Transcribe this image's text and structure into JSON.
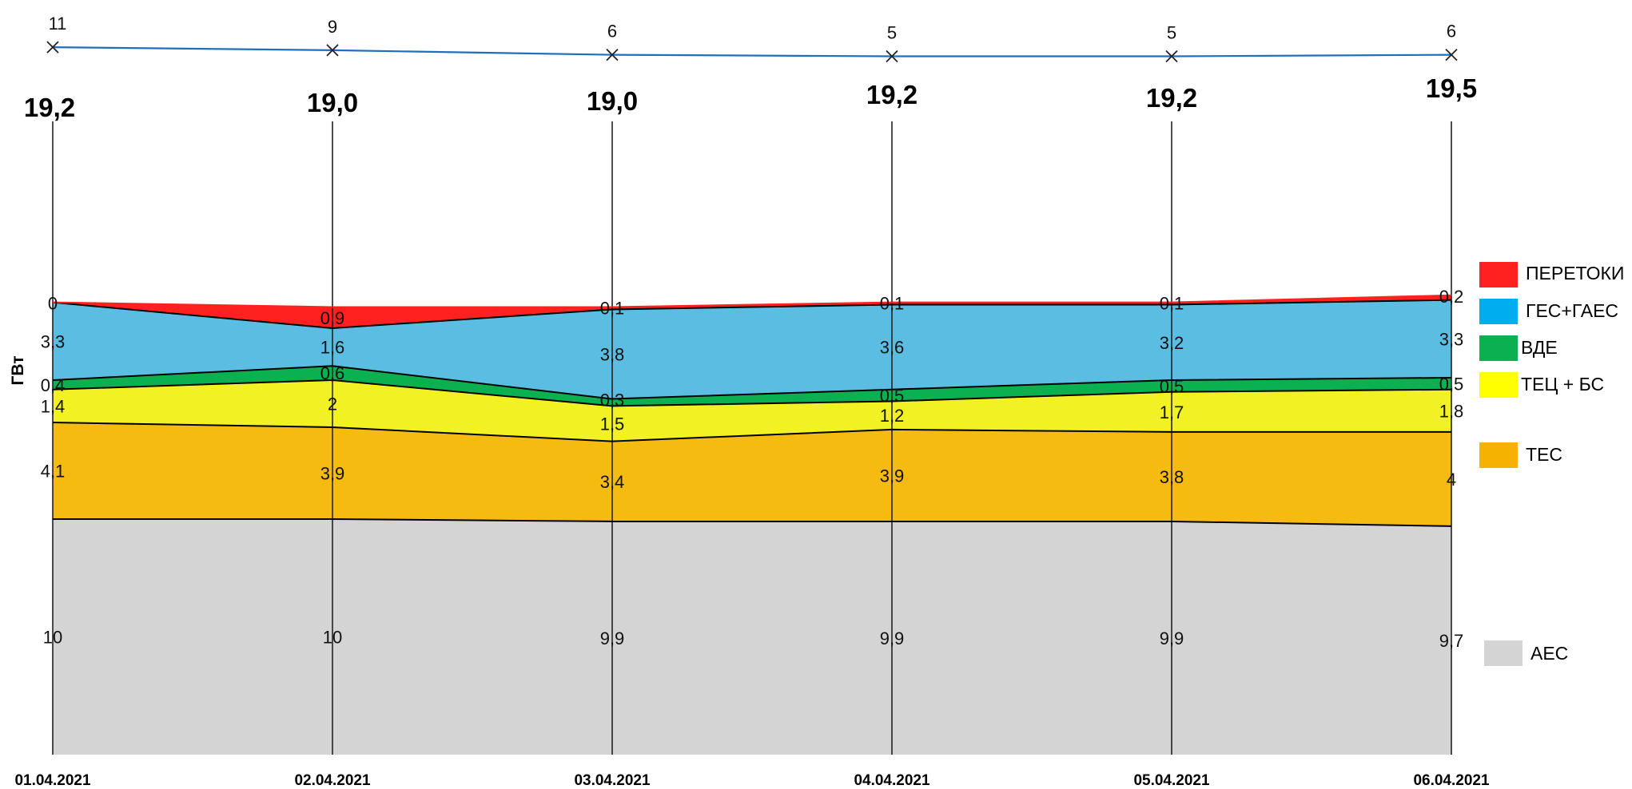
{
  "chart_data": {
    "type": "area",
    "stacked": true,
    "ylabel": "ГВт",
    "categories": [
      "01.04.2021",
      "02.04.2021",
      "03.04.2021",
      "04.04.2021",
      "05.04.2021",
      "06.04.2021"
    ],
    "series": [
      {
        "name": "АЕС",
        "color": "#d4d4d4",
        "values": [
          10,
          10,
          9.9,
          9.9,
          9.9,
          9.7
        ],
        "labels": [
          "10",
          "10",
          "9,9",
          "9,9",
          "9,9",
          "9,7"
        ]
      },
      {
        "name": "ТЕС",
        "color": "#f5bb10",
        "values": [
          4.1,
          3.9,
          3.4,
          3.9,
          3.8,
          4
        ],
        "labels": [
          "4,1",
          "3,9",
          "3,4",
          "3,9",
          "3,8",
          "4"
        ]
      },
      {
        "name": "ТЕЦ + БС",
        "color": "#f1f123",
        "values": [
          1.4,
          2,
          1.5,
          1.2,
          1.7,
          1.8
        ],
        "labels": [
          "1,4",
          "2",
          "1,5",
          "1,2",
          "1,7",
          "1,8"
        ]
      },
      {
        "name": "ВДЕ",
        "color": "#0bb050",
        "values": [
          0.4,
          0.6,
          0.3,
          0.5,
          0.5,
          0.5
        ],
        "labels": [
          "0,4",
          "0,6",
          "0,3",
          "0,5",
          "0,5",
          "0,5"
        ]
      },
      {
        "name": "ГЕС+ГАЕС",
        "color": "#5bbde2",
        "values": [
          3.3,
          1.6,
          3.8,
          3.6,
          3.2,
          3.3
        ],
        "labels": [
          "3,3",
          "1,6",
          "3,8",
          "3,6",
          "3,2",
          "3,3"
        ]
      },
      {
        "name": "ПЕРЕТОКИ",
        "color": "#ff2020",
        "values": [
          0,
          0.9,
          0.1,
          0.1,
          0.1,
          0.2
        ],
        "labels": [
          "0",
          "0,9",
          "0,1",
          "0,1",
          "0,1",
          "0,2"
        ]
      }
    ],
    "totals": [
      "19,2",
      "19,0",
      "19,0",
      "19,2",
      "19,2",
      "19,5"
    ],
    "top_line": {
      "color": "#1f6fbf",
      "values": [
        11,
        9,
        6,
        5,
        5,
        6
      ],
      "labels": [
        "11",
        "9",
        "6",
        "5",
        "5",
        "6"
      ]
    },
    "legend_placement": "right",
    "legend_order": [
      "ПЕРЕТОКИ",
      "ГЕС+ГАЕС",
      "ВДЕ",
      "ТЕЦ + БС",
      "ТЕС",
      "АЕС"
    ]
  }
}
